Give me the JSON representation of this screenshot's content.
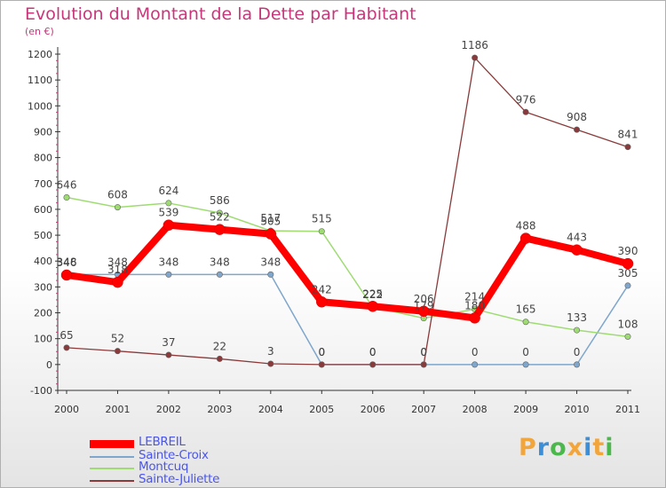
{
  "title": "Evolution du Montant de la Dette par Habitant",
  "subtitle": "(en €)",
  "logo": {
    "letters": [
      "P",
      "r",
      "o",
      "x",
      "i",
      "t",
      "i"
    ],
    "colors": [
      "#f2a53b",
      "#3c8fd6",
      "#4ab84a",
      "#f2a53b",
      "#3c8fd6",
      "#f2a53b",
      "#4ab84a"
    ]
  },
  "chart_data": {
    "type": "line",
    "x": [
      "2000",
      "2001",
      "2002",
      "2003",
      "2004",
      "2005",
      "2006",
      "2007",
      "2008",
      "2009",
      "2010",
      "2011"
    ],
    "ylim": [
      -100,
      1200
    ],
    "yticks": [
      "-100",
      "0",
      "100",
      "200",
      "300",
      "400",
      "500",
      "600",
      "700",
      "800",
      "900",
      "1000",
      "1100",
      "1200"
    ],
    "grid": false,
    "legend_position": "bottom-left",
    "series": [
      {
        "name": "LEBREIL",
        "color": "#ff0000",
        "width": 8,
        "values": [
          346,
          318,
          539,
          522,
          505,
          242,
          225,
          206,
          180,
          488,
          443,
          390
        ],
        "labels": [
          "346",
          "318",
          "539",
          "522",
          "505",
          "242",
          "225",
          "206",
          "180",
          "488",
          "443",
          "390"
        ]
      },
      {
        "name": "Sainte-Croix",
        "color": "#7fa6cc",
        "width": 1.5,
        "values": [
          348,
          348,
          348,
          348,
          348,
          0,
          0,
          0,
          0,
          0,
          0,
          305
        ],
        "labels": [
          "348",
          "348",
          "348",
          "348",
          "348",
          "0",
          "0",
          "0",
          "0",
          "0",
          "0",
          "305"
        ]
      },
      {
        "name": "Montcuq",
        "color": "#9edc72",
        "width": 1.5,
        "values": [
          646,
          608,
          624,
          586,
          517,
          515,
          222,
          179,
          214,
          165,
          133,
          108
        ],
        "labels": [
          "646",
          "608",
          "624",
          "586",
          "517",
          "515",
          "222",
          "179",
          "214",
          "165",
          "133",
          "108"
        ]
      },
      {
        "name": "Sainte-Juliette",
        "color": "#8a3a3a",
        "width": 1.3,
        "values": [
          65,
          52,
          37,
          22,
          3,
          0,
          0,
          0,
          1186,
          976,
          908,
          841
        ],
        "labels": [
          "65",
          "52",
          "37",
          "22",
          "3",
          "0",
          "0",
          "0",
          "1186",
          "976",
          "908",
          "841"
        ]
      }
    ]
  }
}
